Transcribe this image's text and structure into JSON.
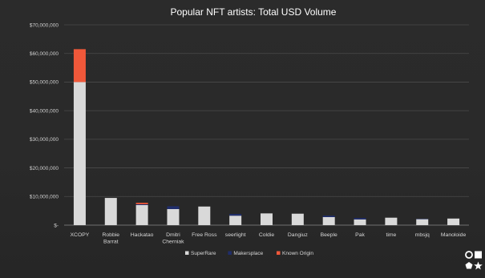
{
  "chart_data": {
    "type": "bar",
    "stacked": true,
    "title": "Popular NFT artists: Total USD Volume",
    "xlabel": "",
    "ylabel": "",
    "ylim": [
      0,
      70000000
    ],
    "yticks": [
      0,
      10000000,
      20000000,
      30000000,
      40000000,
      50000000,
      60000000,
      70000000
    ],
    "ytick_labels": [
      "$-",
      "$10,000,000",
      "$20,000,000",
      "$30,000,000",
      "$40,000,000",
      "$50,000,000",
      "$60,000,000",
      "$70,000,000"
    ],
    "grid": true,
    "legend_position": "bottom",
    "categories": [
      [
        "XCOPY"
      ],
      [
        "Robbie",
        "Barrat"
      ],
      [
        "Hackatao"
      ],
      [
        "Dmitri",
        "Cherniak"
      ],
      [
        "Free Ross"
      ],
      [
        "seerlight"
      ],
      [
        "Coldie"
      ],
      [
        "Dangiuz"
      ],
      [
        "Beeple"
      ],
      [
        "Pak"
      ],
      [
        "time"
      ],
      [
        "mbsjq"
      ],
      [
        "Manoloide"
      ]
    ],
    "series": [
      {
        "name": "SuperRare",
        "color": "#d9d9d9",
        "values": [
          50000000,
          9500000,
          7000000,
          5600000,
          6500000,
          3300000,
          4100000,
          4000000,
          2800000,
          2000000,
          2600000,
          2100000,
          2300000
        ]
      },
      {
        "name": "Makersplace",
        "color": "#1f2d6b",
        "values": [
          0,
          0,
          300000,
          1000000,
          0,
          600000,
          0,
          0,
          500000,
          500000,
          0,
          100000,
          0
        ]
      },
      {
        "name": "Known Origin",
        "color": "#f0583a",
        "values": [
          11500000,
          0,
          500000,
          0,
          0,
          0,
          0,
          0,
          0,
          0,
          0,
          0,
          0
        ]
      }
    ]
  },
  "corner_icons": [
    "circle-outline-icon",
    "square-icon",
    "pentagon-icon",
    "star-icon"
  ]
}
